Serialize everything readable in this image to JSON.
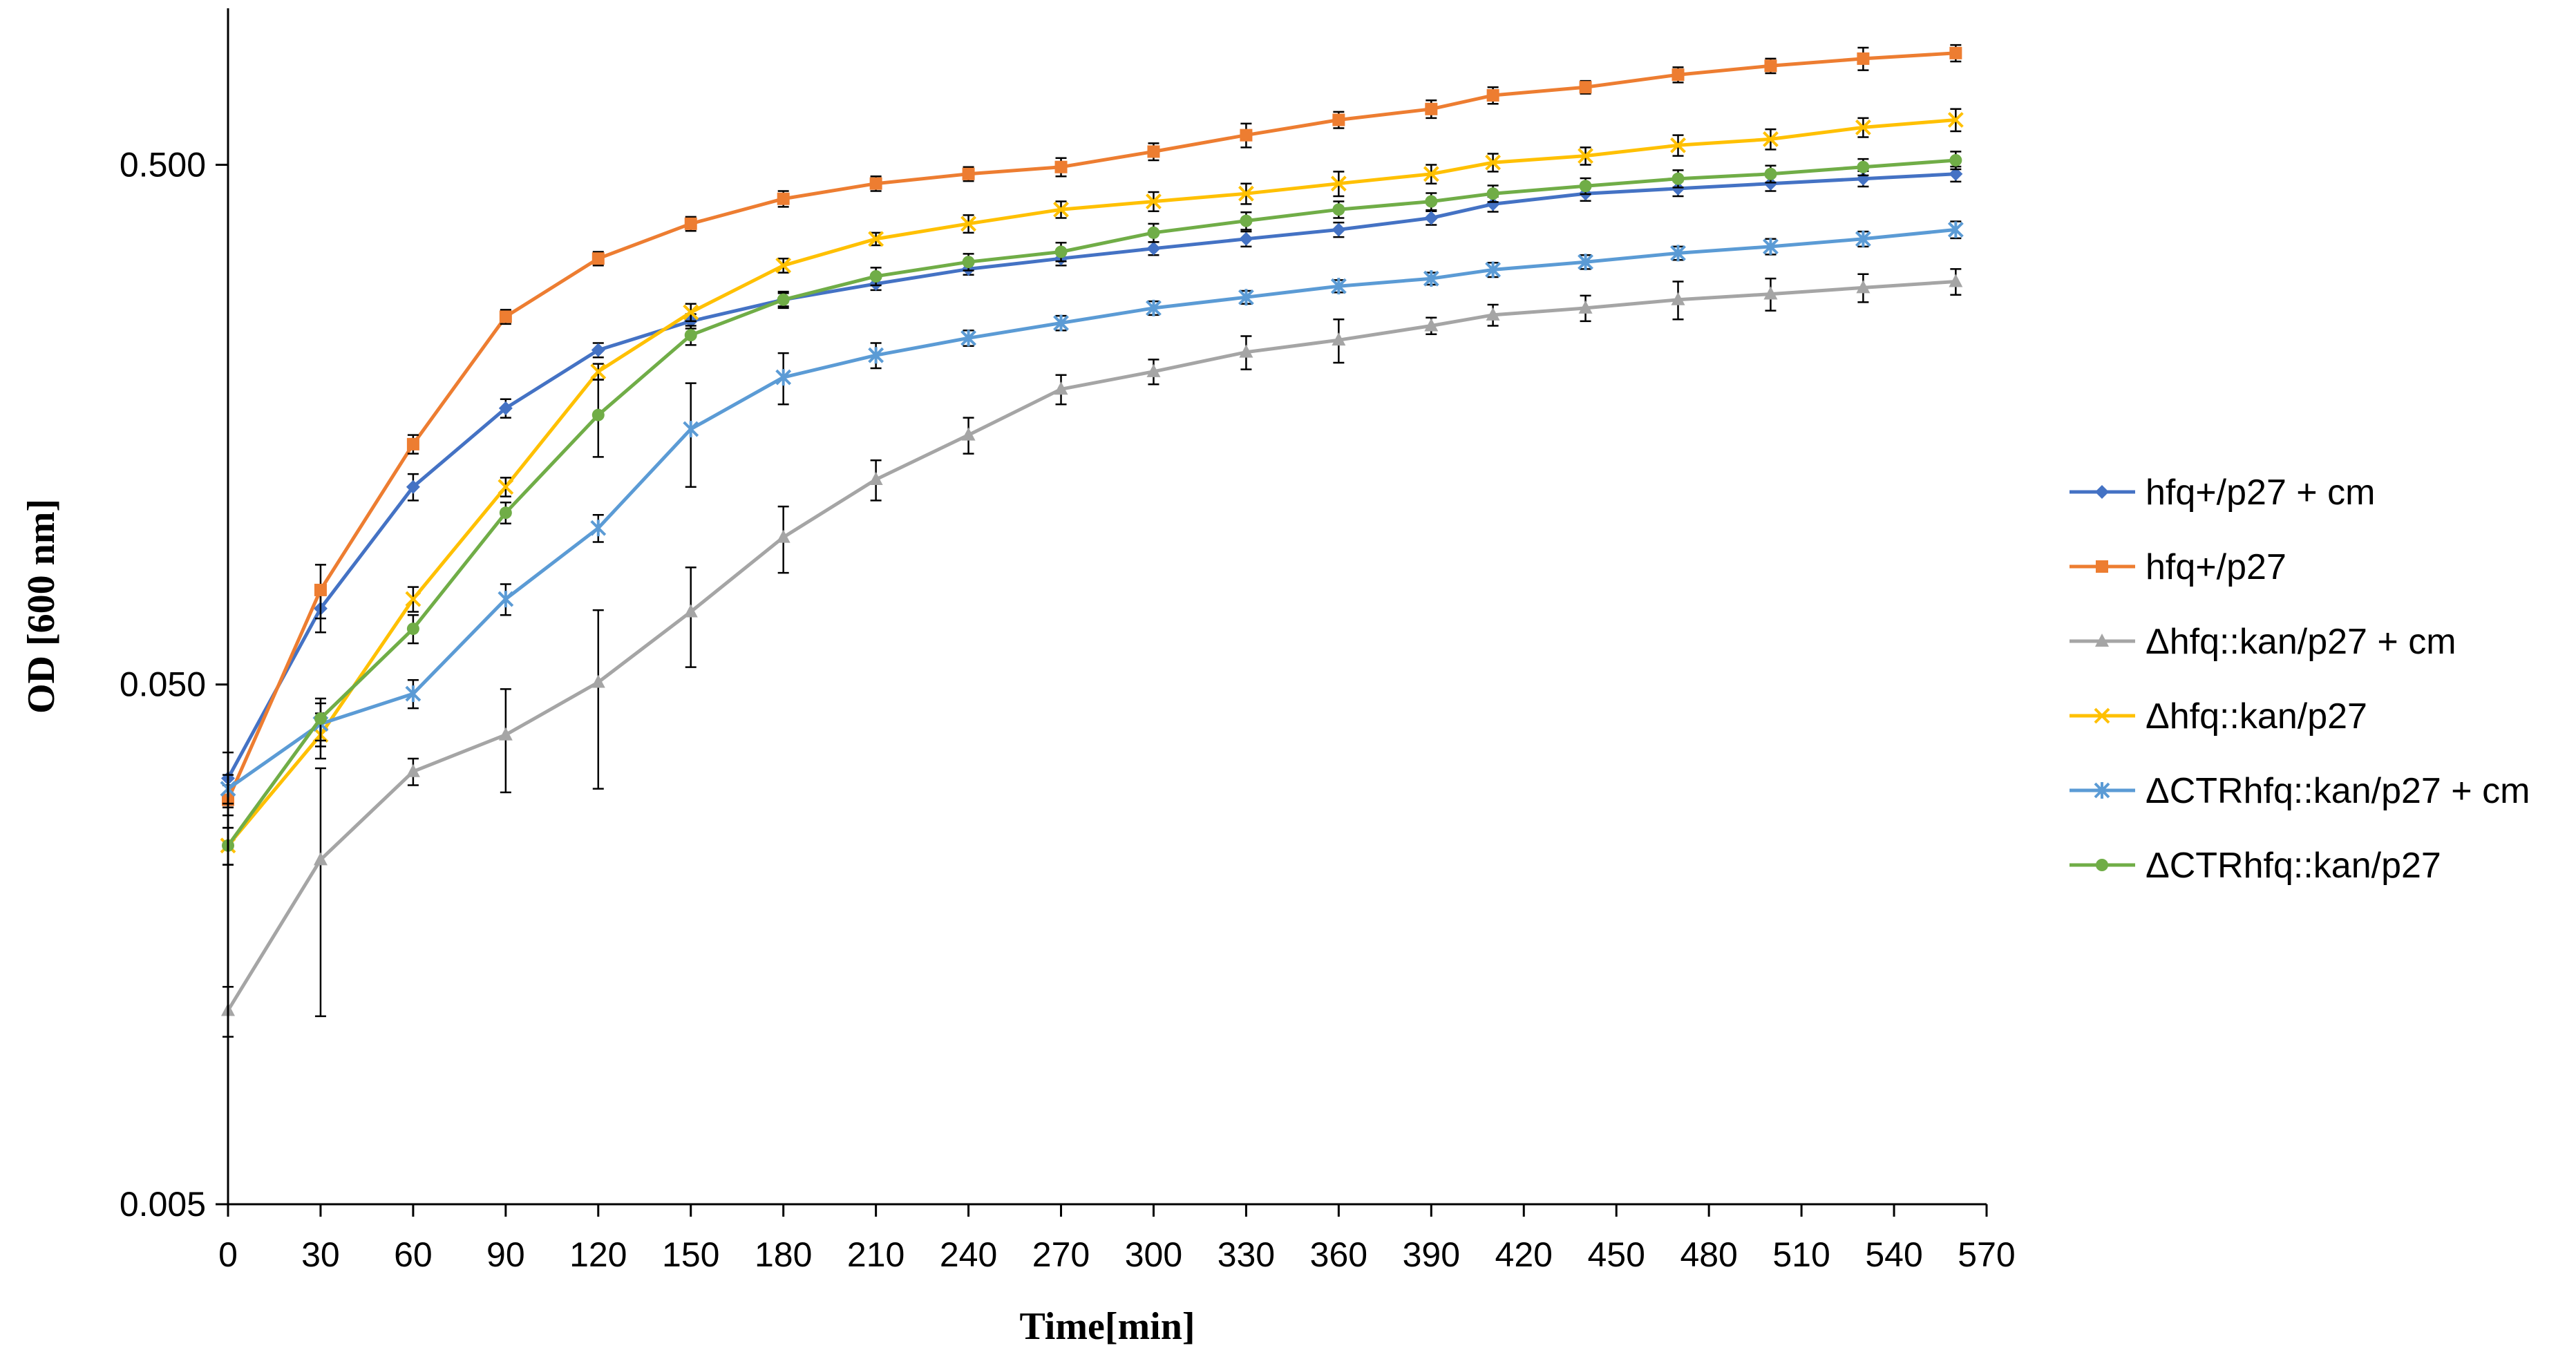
{
  "chart_data": {
    "type": "line",
    "title": "",
    "xlabel": "Time[min]",
    "ylabel": "OD [600 nm]",
    "xlim": [
      0,
      570
    ],
    "ylim": [
      0.005,
      1.0
    ],
    "yscale": "log",
    "xticks": [
      0,
      30,
      60,
      90,
      120,
      150,
      180,
      210,
      240,
      270,
      300,
      330,
      360,
      390,
      420,
      450,
      480,
      510,
      540,
      570
    ],
    "xtick_labels": [
      "0",
      "30",
      "60",
      "90",
      "120",
      "150",
      "180",
      "210",
      "240",
      "270",
      "300",
      "330",
      "360",
      "390",
      "420",
      "450",
      "480",
      "510",
      "540",
      "570"
    ],
    "yticks": [
      0.005,
      0.05,
      0.5
    ],
    "ytick_labels": [
      "0.005",
      "0.050",
      "0.500"
    ],
    "grid": false,
    "legend_position": "right",
    "error_bars": true,
    "x": [
      0,
      30,
      60,
      90,
      120,
      150,
      180,
      210,
      240,
      270,
      300,
      330,
      360,
      390,
      410,
      440,
      470,
      500,
      530,
      560
    ],
    "series": [
      {
        "name": "hfq+/p27 + cm",
        "color": "#4472C4",
        "marker": "diamond",
        "values": [
          0.033,
          0.07,
          0.12,
          0.17,
          0.22,
          0.25,
          0.275,
          0.295,
          0.315,
          0.33,
          0.345,
          0.36,
          0.375,
          0.395,
          0.42,
          0.44,
          0.45,
          0.46,
          0.47,
          0.48
        ],
        "errors": [
          0.004,
          0.007,
          0.007,
          0.007,
          0.007,
          0.008,
          0.008,
          0.008,
          0.008,
          0.01,
          0.01,
          0.012,
          0.012,
          0.012,
          0.014,
          0.014,
          0.015,
          0.015,
          0.016,
          0.016
        ]
      },
      {
        "name": "hfq+/p27",
        "color": "#ED7D31",
        "marker": "square",
        "values": [
          0.03,
          0.076,
          0.145,
          0.255,
          0.33,
          0.385,
          0.43,
          0.46,
          0.48,
          0.495,
          0.53,
          0.57,
          0.61,
          0.64,
          0.68,
          0.705,
          0.745,
          0.775,
          0.8,
          0.82
        ],
        "errors": [
          0.002,
          0.009,
          0.006,
          0.008,
          0.01,
          0.012,
          0.015,
          0.015,
          0.015,
          0.02,
          0.02,
          0.03,
          0.022,
          0.025,
          0.025,
          0.02,
          0.025,
          0.025,
          0.04,
          0.03
        ]
      },
      {
        "name": "Δhfq::kan/p27 + cm",
        "color": "#A5A5A5",
        "marker": "triangle",
        "values": [
          0.0118,
          0.023,
          0.034,
          0.04,
          0.0505,
          0.069,
          0.096,
          0.124,
          0.151,
          0.185,
          0.2,
          0.218,
          0.23,
          0.245,
          0.257,
          0.265,
          0.275,
          0.282,
          0.29,
          0.298
        ],
        "errors": [
          0.0013,
          0.0115,
          0.002,
          0.009,
          0.019,
          0.015,
          0.014,
          0.011,
          0.012,
          0.012,
          0.011,
          0.016,
          0.022,
          0.009,
          0.012,
          0.015,
          0.023,
          0.02,
          0.018,
          0.017
        ]
      },
      {
        "name": "Δhfq::kan/p27",
        "color": "#FFC000",
        "marker": "x",
        "values": [
          0.0245,
          0.04,
          0.073,
          0.12,
          0.2,
          0.26,
          0.32,
          0.36,
          0.385,
          0.41,
          0.425,
          0.44,
          0.46,
          0.48,
          0.505,
          0.52,
          0.545,
          0.56,
          0.59,
          0.61
        ],
        "errors": [
          0.002,
          0.004,
          0.004,
          0.005,
          0.007,
          0.01,
          0.01,
          0.01,
          0.015,
          0.015,
          0.018,
          0.02,
          0.025,
          0.02,
          0.02,
          0.02,
          0.025,
          0.025,
          0.025,
          0.03
        ]
      },
      {
        "name": "ΔCTRhfq::kan/p27 + cm",
        "color": "#5B9BD5",
        "marker": "asterisk",
        "values": [
          0.0315,
          0.042,
          0.048,
          0.073,
          0.1,
          0.155,
          0.195,
          0.215,
          0.232,
          0.248,
          0.265,
          0.278,
          0.292,
          0.302,
          0.314,
          0.325,
          0.338,
          0.348,
          0.36,
          0.375
        ],
        "errors": [
          0.002,
          0.004,
          0.003,
          0.005,
          0.006,
          0.035,
          0.022,
          0.012,
          0.008,
          0.008,
          0.008,
          0.008,
          0.008,
          0.008,
          0.01,
          0.01,
          0.01,
          0.012,
          0.012,
          0.014
        ]
      },
      {
        "name": "ΔCTRhfq::kan/p27",
        "color": "#70AD47",
        "marker": "circle",
        "values": [
          0.0245,
          0.043,
          0.064,
          0.107,
          0.165,
          0.235,
          0.275,
          0.305,
          0.325,
          0.34,
          0.37,
          0.39,
          0.41,
          0.425,
          0.44,
          0.455,
          0.47,
          0.48,
          0.495,
          0.51
        ],
        "errors": [
          0.002,
          0.004,
          0.004,
          0.005,
          0.028,
          0.01,
          0.01,
          0.012,
          0.012,
          0.014,
          0.015,
          0.015,
          0.015,
          0.016,
          0.016,
          0.016,
          0.018,
          0.018,
          0.018,
          0.02
        ]
      }
    ]
  }
}
